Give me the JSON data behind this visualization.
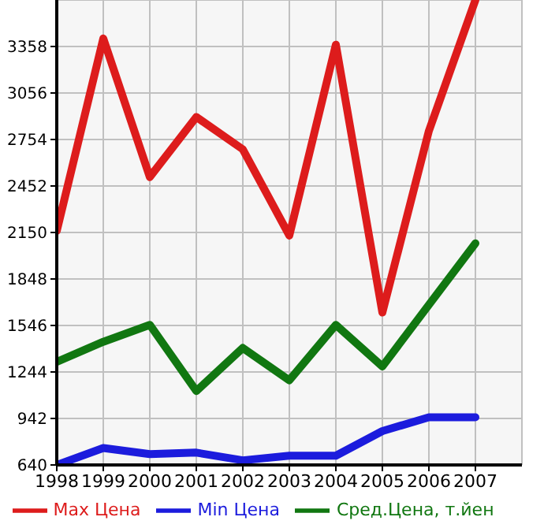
{
  "chart_data": {
    "type": "line",
    "x": [
      1998,
      1999,
      2000,
      2001,
      2002,
      2003,
      2004,
      2005,
      2006,
      2007
    ],
    "xlim": [
      1998,
      2008
    ],
    "xticks": [
      1998,
      1999,
      2000,
      2001,
      2002,
      2003,
      2004,
      2005,
      2006,
      2007
    ],
    "ylim": [
      640,
      3660
    ],
    "yticks": [
      640,
      942,
      1244,
      1546,
      1848,
      2150,
      2452,
      2754,
      3056,
      3358
    ],
    "grid": true,
    "legend": "bottom",
    "marker": "none",
    "line_style": "solid",
    "series": [
      {
        "name": "Max Цена",
        "color": "#dd1c1c",
        "values": [
          2160,
          3410,
          2510,
          2900,
          2690,
          2130,
          3370,
          1630,
          2810,
          3660
        ]
      },
      {
        "name": "Min Цена",
        "color": "#1c1cdd",
        "values": [
          640,
          750,
          710,
          720,
          670,
          700,
          700,
          860,
          950,
          950
        ]
      },
      {
        "name": "Сред.Цена, т.йен",
        "color": "#117711",
        "values": [
          1310,
          1440,
          1550,
          1120,
          1400,
          1190,
          1550,
          1280,
          1680,
          2080
        ]
      }
    ]
  }
}
